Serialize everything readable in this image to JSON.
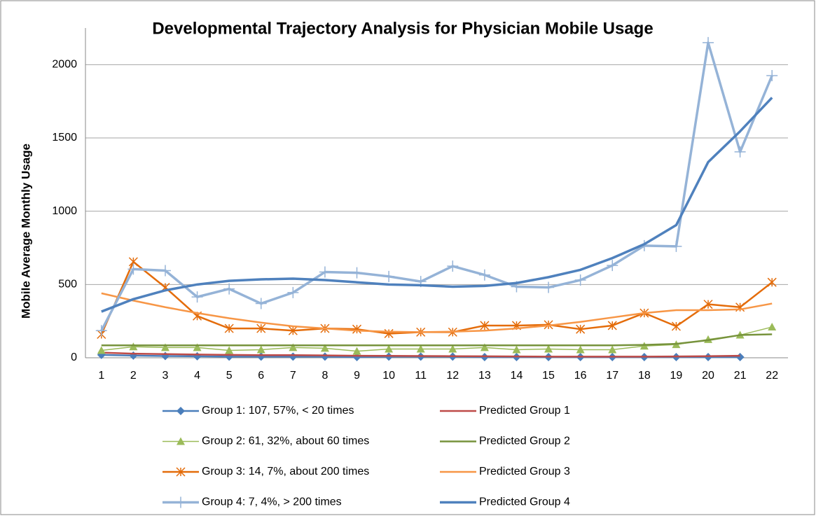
{
  "chart_data": {
    "type": "line",
    "title": "Developmental Trajectory Analysis for Physician Mobile Usage",
    "y_label": "Mobile Average Monthly Usage",
    "categories": [
      "1",
      "2",
      "3",
      "4",
      "5",
      "6",
      "7",
      "8",
      "9",
      "10",
      "11",
      "12",
      "13",
      "14",
      "15",
      "16",
      "17",
      "18",
      "19",
      "20",
      "21",
      "22"
    ],
    "ylim": [
      0,
      2250
    ],
    "yticks": [
      0,
      500,
      1000,
      1500,
      2000
    ],
    "grid": true,
    "series": [
      {
        "name": "Group 1: 107, 57%, < 20 times",
        "color": "#4a7ebb",
        "marker": "diamond",
        "line_width": 2.5,
        "values": [
          20,
          15,
          12,
          10,
          8,
          8,
          8,
          8,
          5,
          8,
          8,
          8,
          5,
          5,
          5,
          5,
          5,
          5,
          5,
          5,
          5,
          null
        ]
      },
      {
        "name": "Predicted Group 1",
        "color": "#be4b48",
        "line_width": 2.5,
        "values": [
          35,
          28,
          25,
          22,
          20,
          18,
          18,
          16,
          14,
          13,
          12,
          11,
          10,
          9,
          8,
          8,
          8,
          8,
          9,
          11,
          14,
          null
        ]
      },
      {
        "name": "Group 2: 61, 32%, about 60 times",
        "color": "#9bbb59",
        "marker": "triangle",
        "line_width": 1.5,
        "values": [
          50,
          75,
          70,
          70,
          50,
          55,
          70,
          65,
          45,
          60,
          60,
          60,
          70,
          55,
          60,
          55,
          55,
          80,
          90,
          125,
          155,
          210
        ]
      },
      {
        "name": "Predicted Group 2",
        "color": "#77933c",
        "line_width": 2.5,
        "values": [
          85,
          85,
          85,
          85,
          85,
          85,
          85,
          85,
          85,
          85,
          85,
          85,
          85,
          85,
          85,
          85,
          85,
          88,
          95,
          120,
          155,
          160
        ]
      },
      {
        "name": "Group 3: 14, 7%, about 200 times",
        "color": "#e46c0a",
        "marker": "asterisk",
        "line_width": 2.5,
        "values": [
          160,
          655,
          480,
          285,
          200,
          200,
          185,
          200,
          195,
          165,
          175,
          175,
          220,
          220,
          225,
          195,
          220,
          305,
          215,
          365,
          345,
          515
        ]
      },
      {
        "name": "Predicted Group 3",
        "color": "#f79646",
        "line_width": 2.5,
        "values": [
          440,
          390,
          345,
          305,
          270,
          240,
          215,
          200,
          185,
          178,
          175,
          178,
          185,
          200,
          220,
          245,
          275,
          305,
          325,
          325,
          330,
          370
        ]
      },
      {
        "name": "Group 4: 7, 4%, > 200 times",
        "color": "#95b3d7",
        "marker": "plus",
        "line_width": 3.5,
        "values": [
          185,
          605,
          595,
          415,
          470,
          370,
          445,
          585,
          580,
          555,
          520,
          625,
          565,
          485,
          480,
          530,
          630,
          765,
          760,
          2150,
          1405,
          1925
        ]
      },
      {
        "name": "Predicted Group 4",
        "color": "#4f81bd",
        "line_width": 3.5,
        "values": [
          315,
          400,
          460,
          500,
          525,
          535,
          540,
          530,
          515,
          500,
          495,
          485,
          490,
          510,
          550,
          600,
          680,
          775,
          905,
          1335,
          1545,
          1775
        ]
      }
    ]
  }
}
